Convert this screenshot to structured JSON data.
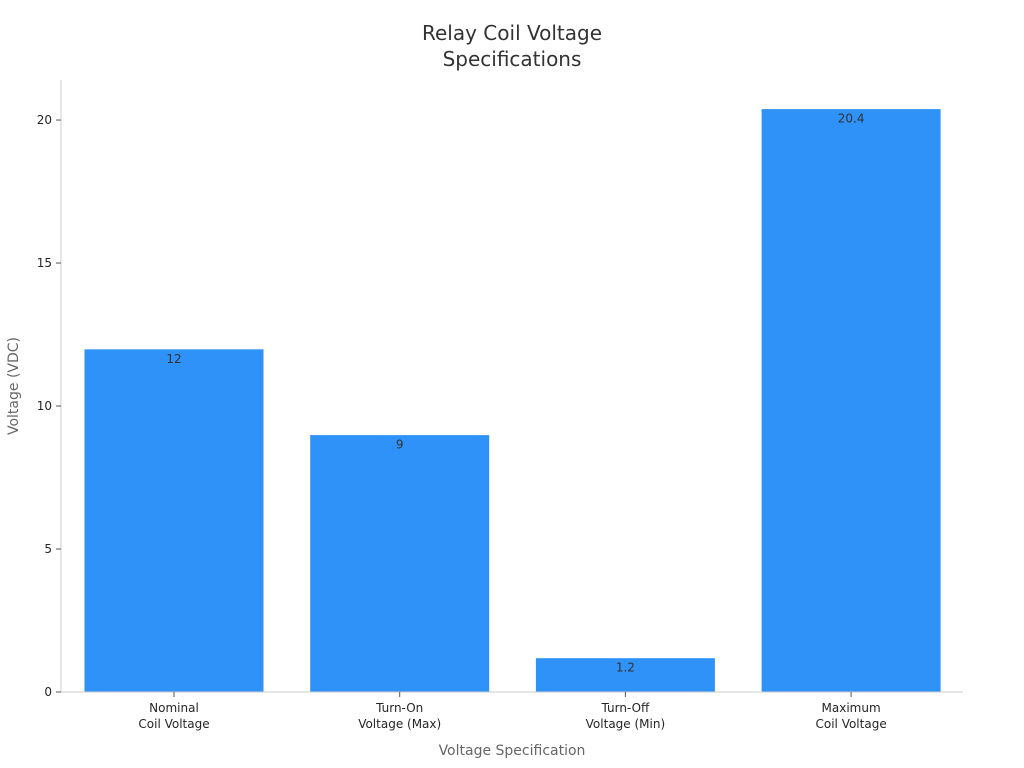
{
  "chart_data": {
    "type": "bar",
    "title_lines": [
      "Relay Coil Voltage",
      "Specifications"
    ],
    "xlabel": "Voltage Specification",
    "ylabel": "Voltage (VDC)",
    "categories": [
      [
        "Nominal",
        "Coil Voltage"
      ],
      [
        "Turn-On",
        "Voltage (Max)"
      ],
      [
        "Turn-Off",
        "Voltage (Min)"
      ],
      [
        "Maximum",
        "Coil Voltage"
      ]
    ],
    "values": [
      12,
      9,
      1.2,
      20.4
    ],
    "data_labels": [
      "12",
      "9",
      "1.2",
      "20.4"
    ],
    "ylim": [
      0,
      21.4
    ],
    "yticks": [
      0,
      5,
      10,
      15,
      20
    ],
    "bar_color": "#2f92f8",
    "grid": false,
    "legend": "none"
  }
}
